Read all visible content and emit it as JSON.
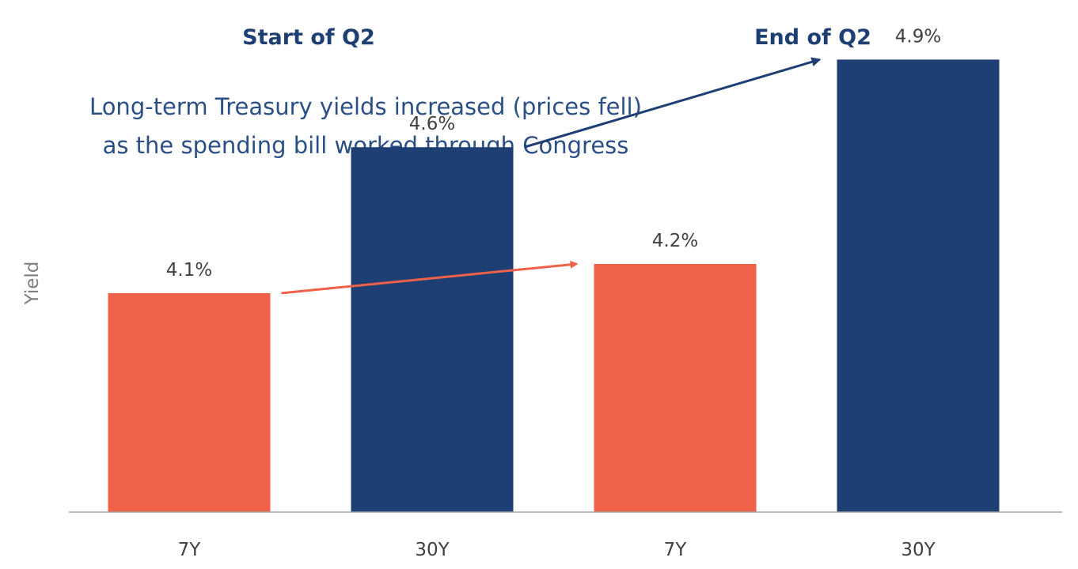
{
  "chart_data": {
    "type": "bar",
    "title": "",
    "xlabel": "",
    "ylabel": "Yield",
    "ylim": [
      3.35,
      5.05
    ],
    "grid": false,
    "groups": [
      {
        "name": "Start of Q2",
        "categories": [
          "7Y",
          "30Y"
        ],
        "values": [
          4.1,
          4.6
        ]
      },
      {
        "name": "End of Q2",
        "categories": [
          "7Y",
          "30Y"
        ],
        "values": [
          4.2,
          4.9
        ]
      }
    ],
    "categories": [
      "7Y",
      "30Y",
      "7Y",
      "30Y"
    ],
    "values": [
      4.1,
      4.6,
      4.2,
      4.9
    ],
    "value_labels": [
      "4.1%",
      "4.6%",
      "4.2%",
      "4.9%"
    ],
    "bar_colors": [
      "#F0614A",
      "#1D3F73",
      "#F0614A",
      "#1D3F73"
    ],
    "annotation": {
      "lines": [
        "Long-term Treasury yields increased (prices fell)",
        "as the spending bill worked through Congress"
      ]
    },
    "arrows": [
      {
        "from_bar": 0,
        "to_bar": 2,
        "color": "#F0614A"
      },
      {
        "from_bar": 1,
        "to_bar": 3,
        "color": "#1D3F73"
      }
    ]
  },
  "colors": {
    "orange": "#F0614A",
    "navy": "#1D3F73",
    "title_text": "#1D3F73",
    "annotation_text": "#2A4F86",
    "label_text": "#404040",
    "axis_title_text": "#7F7F7F",
    "axis_line": "#A6A6A6"
  }
}
